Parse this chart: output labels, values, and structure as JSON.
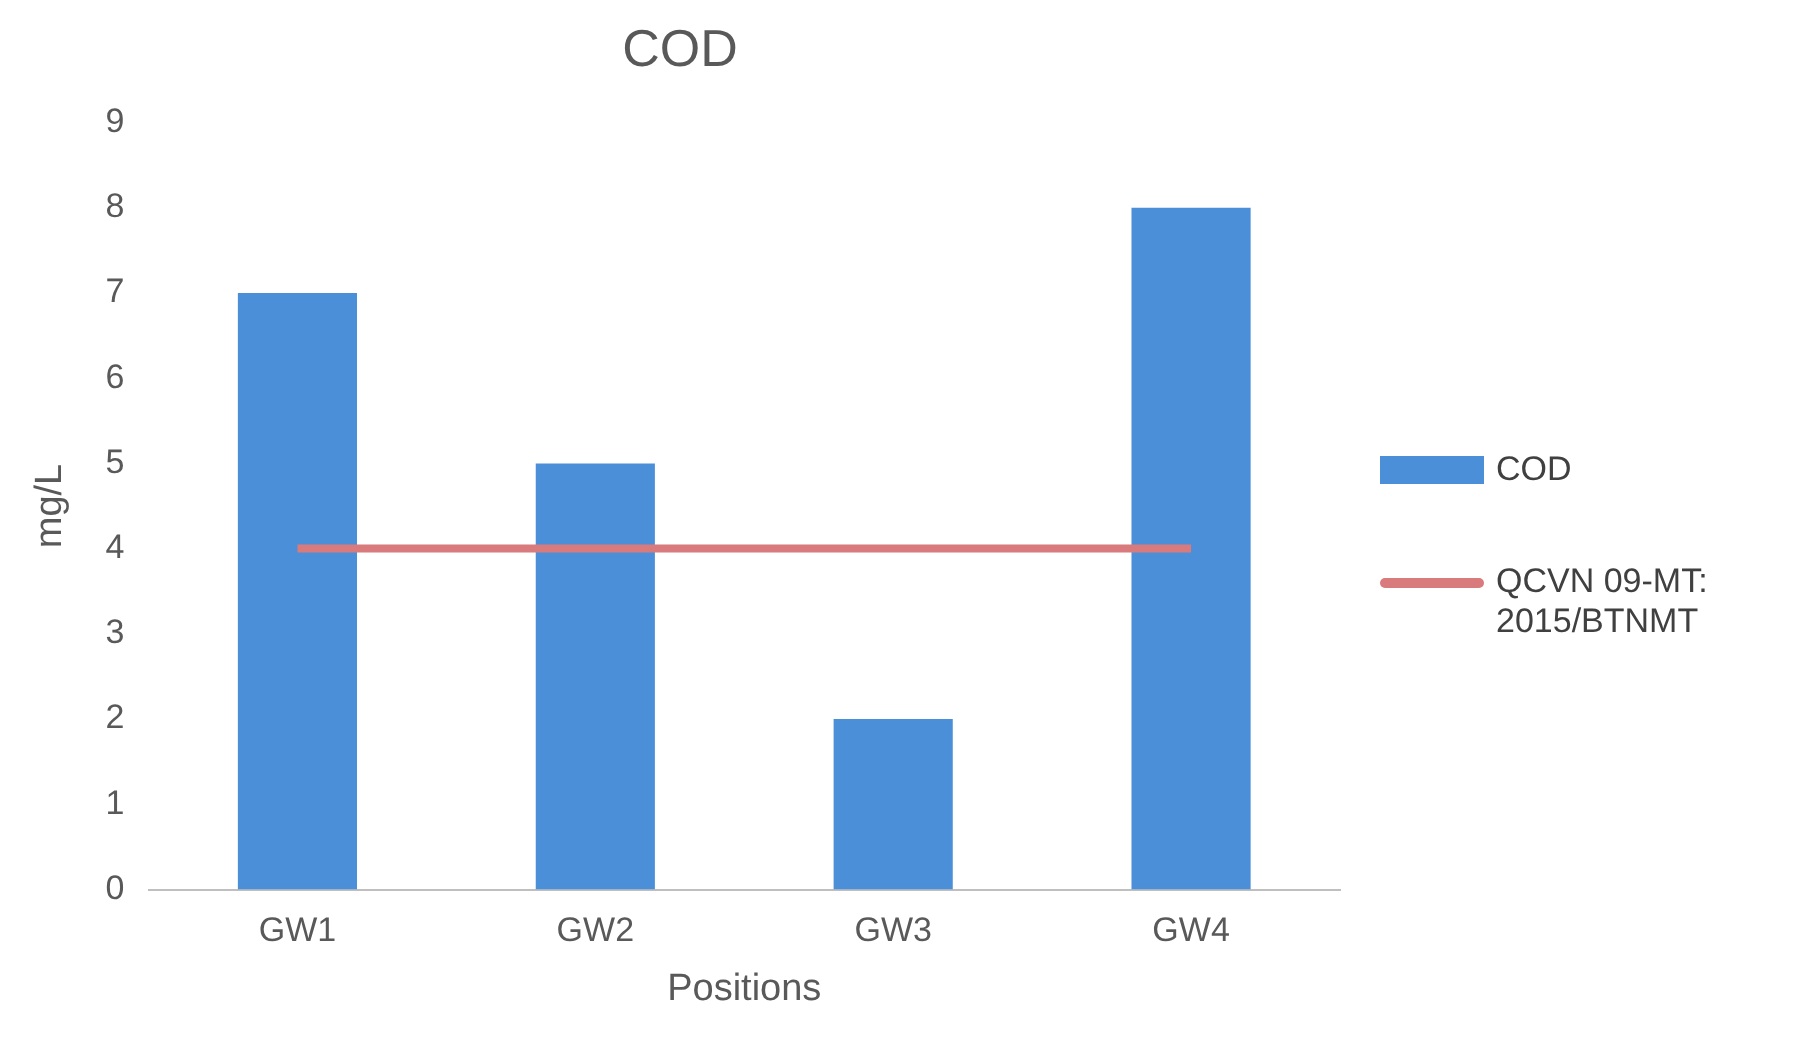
{
  "chart_data": {
    "type": "bar",
    "title": "COD",
    "xlabel": "Positions",
    "ylabel": "mg/L",
    "categories": [
      "GW1",
      "GW2",
      "GW3",
      "GW4"
    ],
    "series": [
      {
        "name": "COD",
        "color": "#4a8fd8",
        "values": [
          7,
          5,
          2,
          8
        ]
      },
      {
        "name": "QCVN 09-MT: 2015/BTNMT",
        "type": "line",
        "color": "#d97a7c",
        "values": [
          4,
          4,
          4,
          4
        ]
      }
    ],
    "ylim": [
      0,
      9
    ],
    "yticks": [
      0,
      1,
      2,
      3,
      4,
      5,
      6,
      7,
      8,
      9
    ],
    "grid": false,
    "legend": "right",
    "marker": "none"
  }
}
